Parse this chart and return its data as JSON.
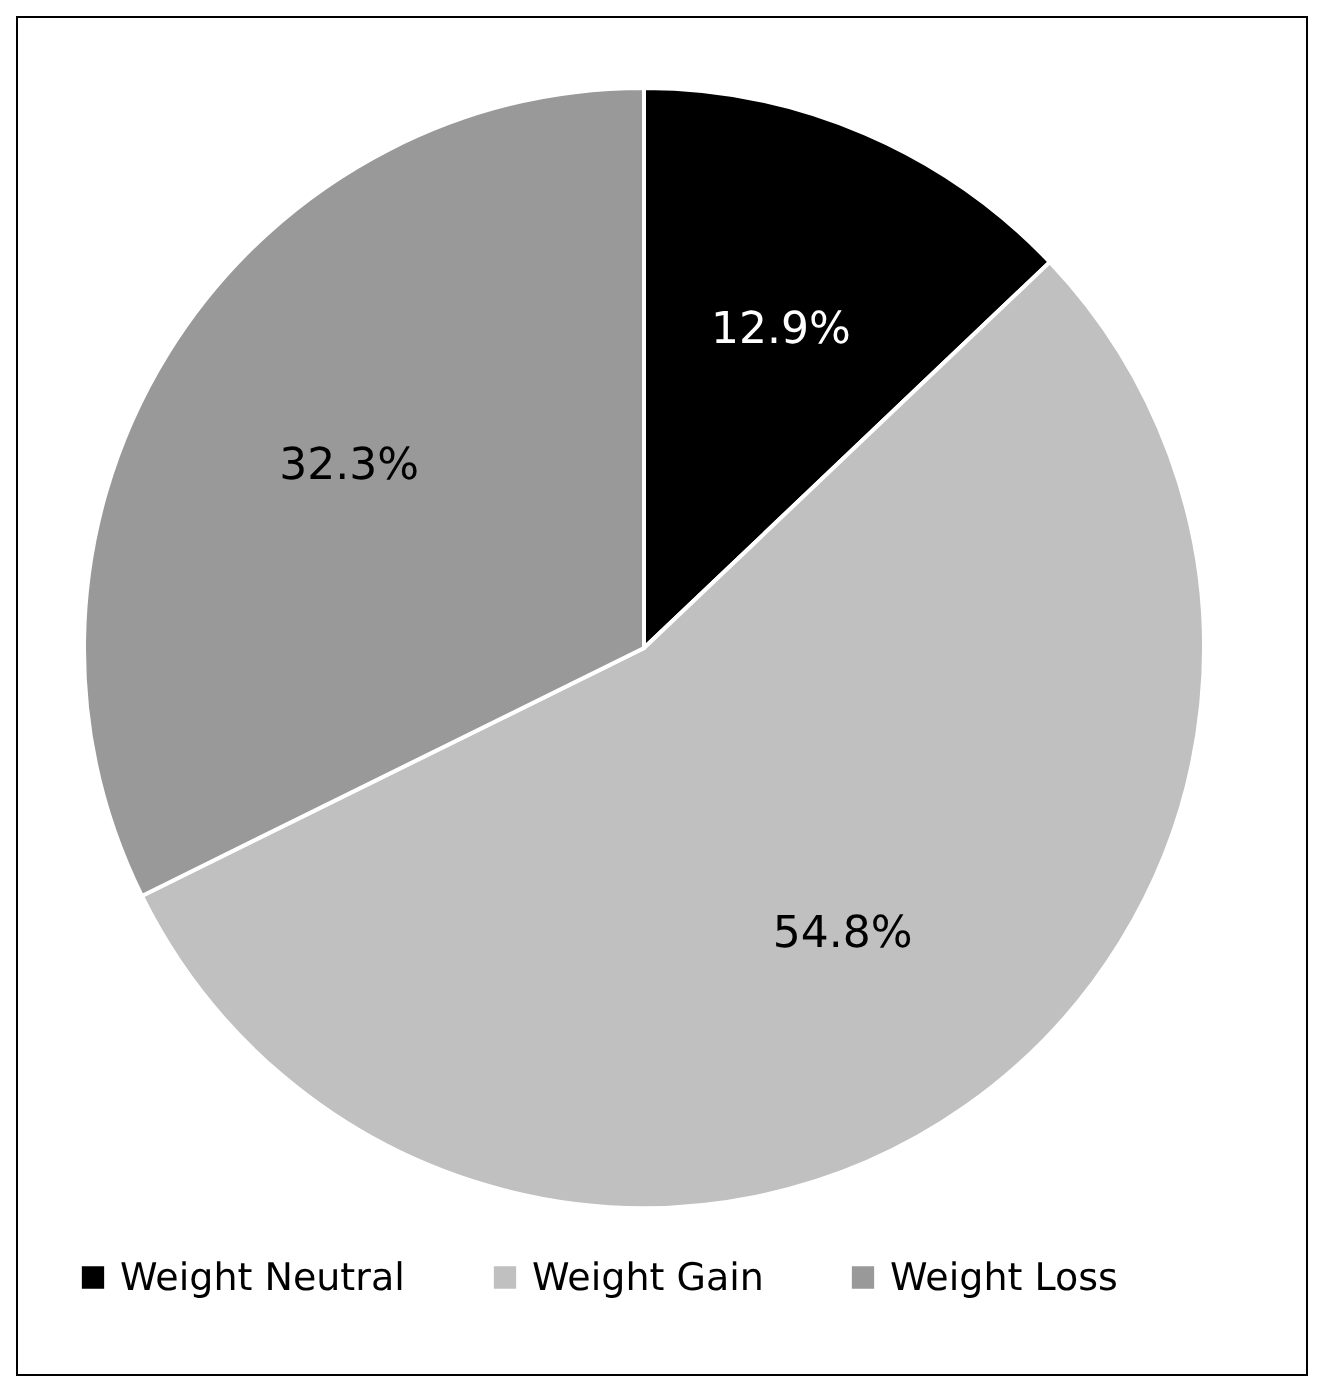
{
  "chart_data": {
    "type": "pie",
    "categories": [
      "Weight Neutral",
      "Weight Gain",
      "Weight Loss"
    ],
    "values": [
      12.9,
      54.8,
      32.3
    ],
    "value_labels": [
      "12.9%",
      "54.8%",
      "32.3%"
    ],
    "colors": [
      "#000000",
      "#c0c0c0",
      "#999999"
    ],
    "legend": "bottom"
  }
}
